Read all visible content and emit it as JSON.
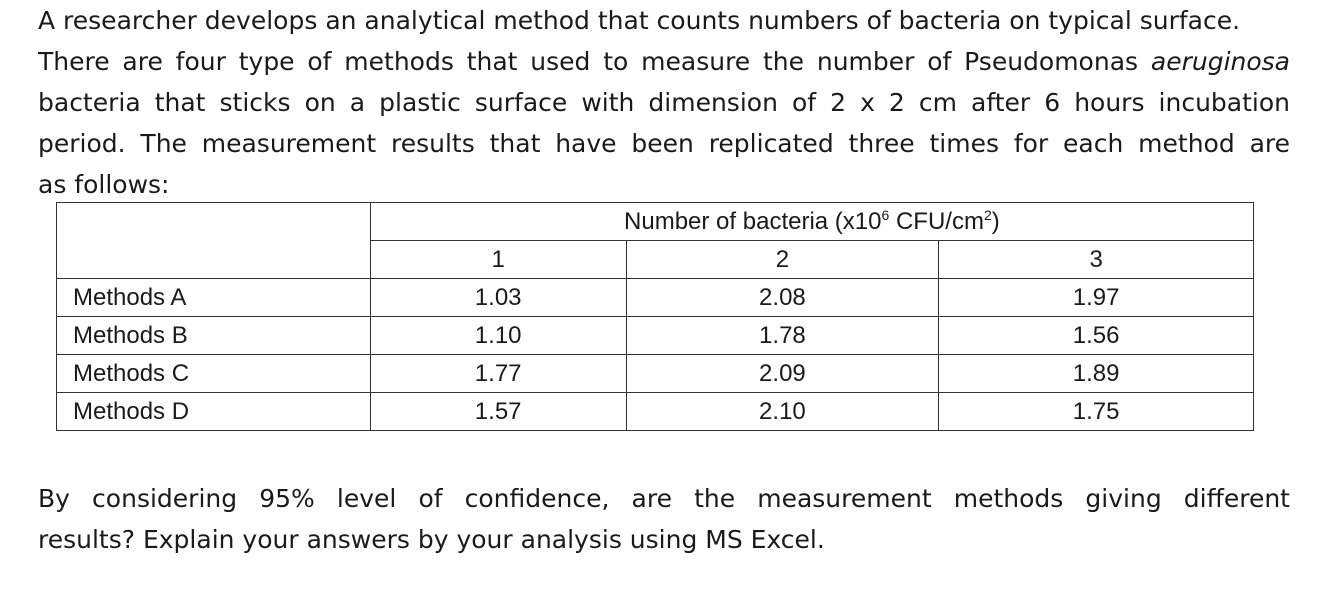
{
  "intro": {
    "line1": "A researcher develops an analytical method that counts numbers of bacteria on typical surface.",
    "line2_before": "There are four type of methods that used to measure the number of Pseudomonas ",
    "line2_italic": "aeruginosa",
    "line3": "bacteria that sticks on a plastic surface with dimension of 2 x 2 cm after 6 hours incubation",
    "line4": "period. The measurement results that have been replicated three times for each method are",
    "line5": "as follows:"
  },
  "table": {
    "header_prefix": "Number of bacteria (x10",
    "header_exp": "6",
    "header_unit": " CFU/cm",
    "header_unit_exp": "2",
    "header_suffix": ")",
    "replicates": [
      "1",
      "2",
      "3"
    ],
    "rows": [
      {
        "label": "Methods A",
        "values": [
          "1.03",
          "2.08",
          "1.97"
        ]
      },
      {
        "label": "Methods B",
        "values": [
          "1.10",
          "1.78",
          "1.56"
        ]
      },
      {
        "label": "Methods C",
        "values": [
          "1.77",
          "2.09",
          "1.89"
        ]
      },
      {
        "label": "Methods D",
        "values": [
          "1.57",
          "2.10",
          "1.75"
        ]
      }
    ]
  },
  "question": {
    "line1": "By considering 95% level of confidence, are the measurement methods giving different",
    "line2": "results? Explain your answers by your analysis using MS Excel."
  }
}
